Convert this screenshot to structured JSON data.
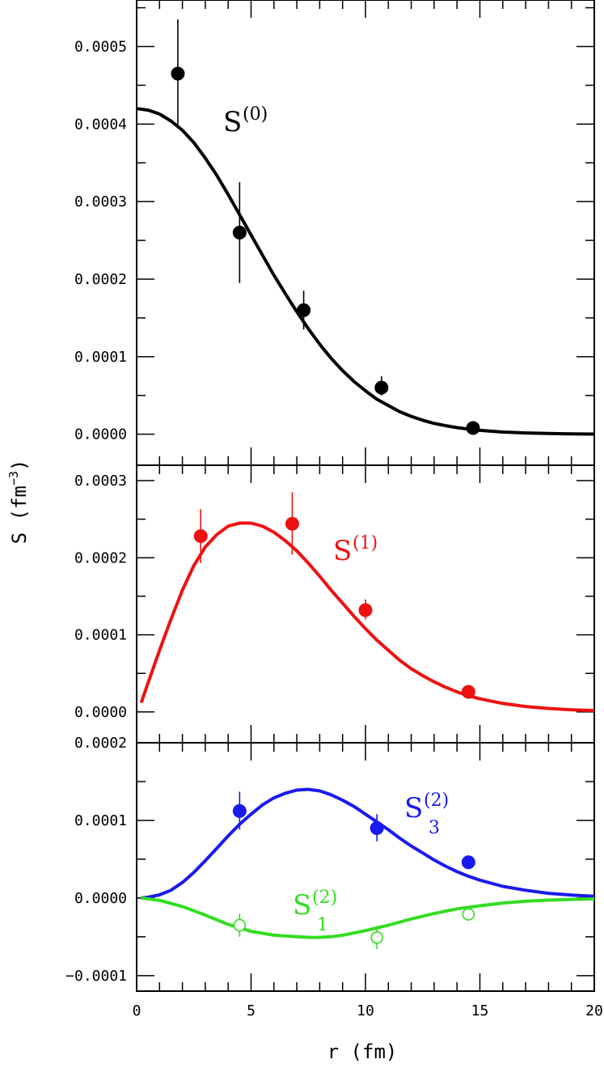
{
  "chart_data": {
    "type": "scatter",
    "xlabel": "r (fm)",
    "ylabel": "S (fm",
    "ylabel_sup": "−3",
    "ylabel_close": ")",
    "xlim": [
      0,
      20
    ],
    "x_ticks": [
      0,
      5,
      10,
      15,
      20
    ],
    "x_tick_labels": [
      "0",
      "5",
      "10",
      "15",
      "20"
    ],
    "panels": [
      {
        "id": "S0",
        "ylim": [
          -4e-05,
          0.00056
        ],
        "y_ticks": [
          0.0,
          0.0001,
          0.0002,
          0.0003,
          0.0004,
          0.0005
        ],
        "y_tick_labels": [
          "0.0000",
          "0.0001",
          "0.0002",
          "0.0003",
          "0.0004",
          "0.0005"
        ],
        "series": [
          {
            "label_main": "S",
            "label_sup": "(0)",
            "label_sub": "",
            "color": "#000000",
            "marker": "filled",
            "curve_x": [
              0,
              0.5,
              1,
              1.5,
              2,
              2.5,
              3,
              3.5,
              4,
              4.5,
              5,
              5.5,
              6,
              6.5,
              7,
              7.5,
              8,
              8.5,
              9,
              9.5,
              10,
              10.5,
              11,
              11.5,
              12,
              12.5,
              13,
              13.5,
              14,
              14.5,
              15,
              16,
              17,
              18,
              19,
              20
            ],
            "curve_y": [
              0.00042,
              0.000418,
              0.000413,
              0.000404,
              0.000392,
              0.000376,
              0.000356,
              0.000334,
              0.000309,
              0.000283,
              0.000257,
              0.000231,
              0.000205,
              0.000181,
              0.000158,
              0.000136,
              0.000116,
              9.8e-05,
              8.2e-05,
              6.8e-05,
              5.6e-05,
              4.5e-05,
              3.7e-05,
              2.9e-05,
              2.3e-05,
              1.8e-05,
              1.4e-05,
              1.1e-05,
              8.5e-06,
              6.5e-06,
              5e-06,
              2.8e-06,
              1.6e-06,
              9e-07,
              5e-07,
              2e-07
            ],
            "points": [
              {
                "x": 1.8,
                "y": 0.000465,
                "err_lo": 0.000397,
                "err_hi": 0.000535
              },
              {
                "x": 4.5,
                "y": 0.00026,
                "err_lo": 0.000195,
                "err_hi": 0.000325
              },
              {
                "x": 7.3,
                "y": 0.00016,
                "err_lo": 0.000135,
                "err_hi": 0.000185
              },
              {
                "x": 10.7,
                "y": 6e-05,
                "err_lo": 5e-05,
                "err_hi": 7.5e-05
              },
              {
                "x": 14.7,
                "y": 8e-06,
                "err_lo": 4e-06,
                "err_hi": 1.4e-05
              }
            ]
          }
        ]
      },
      {
        "id": "S1",
        "ylim": [
          -4e-05,
          0.00032
        ],
        "y_ticks": [
          0.0,
          0.0001,
          0.0002,
          0.0003
        ],
        "y_tick_labels": [
          "0.0000",
          "0.0001",
          "0.0002",
          "0.0003"
        ],
        "series": [
          {
            "label_main": "S",
            "label_sup": "(1)",
            "label_sub": "",
            "color": "#ee1111",
            "marker": "filled",
            "curve_x": [
              0.2,
              0.5,
              1,
              1.5,
              2,
              2.5,
              3,
              3.5,
              4,
              4.5,
              5,
              5.5,
              6,
              6.5,
              7,
              7.5,
              8,
              8.5,
              9,
              9.5,
              10,
              10.5,
              11,
              11.5,
              12,
              12.5,
              13,
              13.5,
              14,
              14.5,
              15,
              16,
              17,
              18,
              19,
              20
            ],
            "curve_y": [
              1.2e-05,
              3.8e-05,
              8e-05,
              0.00012,
              0.000158,
              0.00019,
              0.000214,
              0.00023,
              0.000241,
              0.000245,
              0.000245,
              0.000241,
              0.000233,
              0.000222,
              0.000209,
              0.000193,
              0.000176,
              0.000158,
              0.000141,
              0.000124,
              0.000108,
              9.3e-05,
              8e-05,
              6.7e-05,
              5.6e-05,
              4.7e-05,
              3.9e-05,
              3.2e-05,
              2.6e-05,
              2.1e-05,
              1.7e-05,
              1.1e-05,
              7e-06,
              4.5e-06,
              2.8e-06,
              1.8e-06
            ],
            "points": [
              {
                "x": 2.8,
                "y": 0.000228,
                "err_lo": 0.000193,
                "err_hi": 0.000263
              },
              {
                "x": 6.8,
                "y": 0.000244,
                "err_lo": 0.000204,
                "err_hi": 0.000285
              },
              {
                "x": 10.0,
                "y": 0.000132,
                "err_lo": 0.00012,
                "err_hi": 0.000146
              },
              {
                "x": 14.5,
                "y": 2.6e-05,
                "err_lo": 2.1e-05,
                "err_hi": 3.1e-05
              }
            ]
          }
        ]
      },
      {
        "id": "S2",
        "ylim": [
          -0.00012,
          0.0002
        ],
        "y_ticks": [
          -0.0001,
          0.0,
          0.0001,
          0.0002
        ],
        "y_tick_labels": [
          "−0.0001",
          "0.0000",
          "0.0001",
          "0.0002"
        ],
        "series": [
          {
            "label_main": "S",
            "label_sup": "(2)",
            "label_sub": "3",
            "color": "#1a1aee",
            "marker": "filled",
            "curve_x": [
              0.2,
              0.5,
              1,
              1.5,
              2,
              2.5,
              3,
              3.5,
              4,
              4.5,
              5,
              5.5,
              6,
              6.5,
              7,
              7.5,
              8,
              8.5,
              9,
              9.5,
              10,
              10.5,
              11,
              11.5,
              12,
              12.5,
              13,
              13.5,
              14,
              14.5,
              15,
              16,
              17,
              18,
              19,
              20
            ],
            "curve_y": [
              0.0,
              1e-06,
              4e-06,
              1e-05,
              2e-05,
              3.3e-05,
              4.8e-05,
              6.4e-05,
              8e-05,
              9.5e-05,
              0.000108,
              0.00012,
              0.000129,
              0.000135,
              0.000139,
              0.00014,
              0.000138,
              0.000133,
              0.000126,
              0.000118,
              0.000108,
              9.8e-05,
              8.8e-05,
              7.7e-05,
              6.7e-05,
              5.8e-05,
              4.9e-05,
              4.1e-05,
              3.4e-05,
              2.8e-05,
              2.3e-05,
              1.5e-05,
              1e-05,
              6e-06,
              3.7e-06,
              2.2e-06
            ],
            "points": [
              {
                "x": 4.5,
                "y": 0.000112,
                "err_lo": 8.8e-05,
                "err_hi": 0.000137
              },
              {
                "x": 10.5,
                "y": 9e-05,
                "err_lo": 7.3e-05,
                "err_hi": 0.000108
              },
              {
                "x": 14.5,
                "y": 4.6e-05,
                "err_lo": 3.9e-05,
                "err_hi": 5.3e-05
              }
            ]
          },
          {
            "label_main": "S",
            "label_sup": "(2)",
            "label_sub": "1",
            "color": "#33dd22",
            "marker": "open",
            "curve_x": [
              0.2,
              1,
              2,
              3,
              4,
              5,
              6,
              7,
              7.8,
              8.5,
              9,
              10,
              11,
              12,
              13,
              14,
              15,
              16,
              17,
              18,
              19,
              20
            ],
            "curve_y": [
              0.0,
              -3e-06,
              -1.1e-05,
              -2.2e-05,
              -3.4e-05,
              -4.3e-05,
              -4.8e-05,
              -5e-05,
              -5.1e-05,
              -5e-05,
              -4.8e-05,
              -4.2e-05,
              -3.5e-05,
              -2.7e-05,
              -2e-05,
              -1.4e-05,
              -1e-05,
              -6.5e-06,
              -4.2e-06,
              -2.7e-06,
              -1.8e-06,
              -1.2e-06
            ],
            "points": [
              {
                "x": 4.5,
                "y": -3.5e-05,
                "err_lo": -5e-05,
                "err_hi": -2e-05
              },
              {
                "x": 10.5,
                "y": -5.1e-05,
                "err_lo": -6.6e-05,
                "err_hi": -3.6e-05
              },
              {
                "x": 14.5,
                "y": -2.1e-05,
                "err_lo": -2.6e-05,
                "err_hi": -1.6e-05
              }
            ]
          }
        ]
      }
    ]
  }
}
